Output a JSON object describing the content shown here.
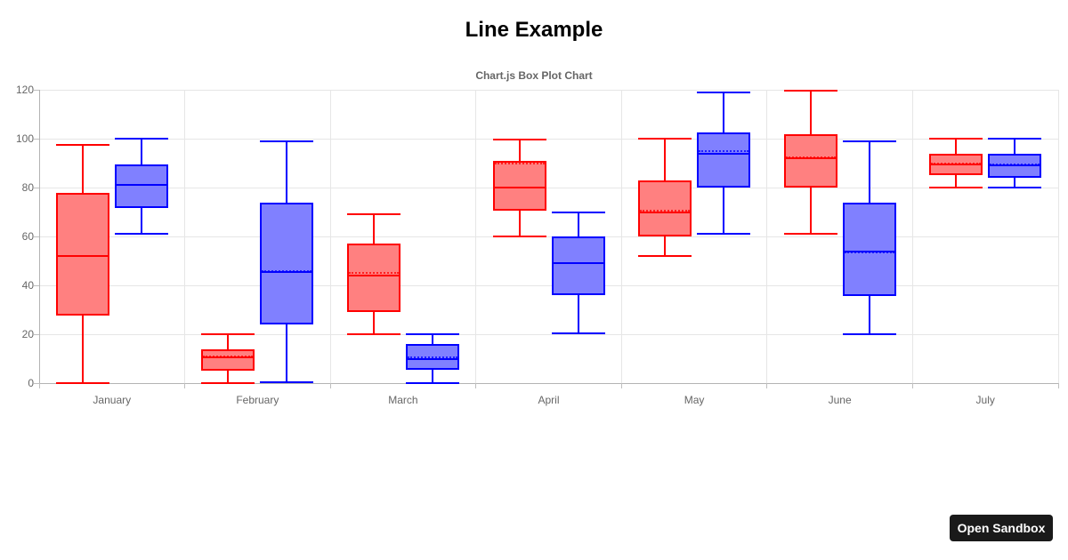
{
  "page": {
    "background": "#ffffff"
  },
  "header": {
    "title": "Line Example",
    "subtitle": "Chart.js Box Plot Chart",
    "title_color": "#000000",
    "subtitle_color": "#666666"
  },
  "sandbox_button": {
    "label": "Open Sandbox",
    "background": "#1a1a1a",
    "text_color": "#ffffff"
  },
  "chart_data": {
    "type": "boxplot",
    "title": "Chart.js Box Plot Chart",
    "categories": [
      "January",
      "February",
      "March",
      "April",
      "May",
      "June",
      "July"
    ],
    "y_axis": {
      "min": 0,
      "max": 120,
      "ticks": [
        0,
        20,
        40,
        60,
        80,
        100,
        120
      ]
    },
    "grid": {
      "gridline_color": "#e6e6e6",
      "axis_color": "#b3b3b3",
      "tick_mark_color": "#bfbfbf",
      "label_color": "#666666",
      "grid_on": true
    },
    "legend_position": "none",
    "series": [
      {
        "name": "red-series",
        "border_color": "#ff0000",
        "fill_color": "#ff8080",
        "boxes": [
          {
            "category": "January",
            "min": 0,
            "q1": 27.5,
            "median": 52,
            "mean": 52,
            "q3": 78,
            "max": 97.5
          },
          {
            "category": "February",
            "min": 0,
            "q1": 5,
            "median": 10.5,
            "mean": 11,
            "q3": 14,
            "max": 20
          },
          {
            "category": "March",
            "min": 20,
            "q1": 29,
            "median": 44,
            "mean": 45,
            "q3": 57,
            "max": 69
          },
          {
            "category": "April",
            "min": 60,
            "q1": 70.5,
            "median": 80,
            "mean": 90,
            "q3": 91,
            "max": 99.5
          },
          {
            "category": "May",
            "min": 52,
            "q1": 60,
            "median": 70,
            "mean": 70.5,
            "q3": 83,
            "max": 100
          },
          {
            "category": "June",
            "min": 61,
            "q1": 80,
            "median": 92,
            "mean": 92.5,
            "q3": 102,
            "max": 119.5
          },
          {
            "category": "July",
            "min": 80,
            "q1": 85,
            "median": 89.5,
            "mean": 90,
            "q3": 94,
            "max": 100
          }
        ]
      },
      {
        "name": "blue-series",
        "border_color": "#0000ff",
        "fill_color": "#8080ff",
        "boxes": [
          {
            "category": "January",
            "min": 61,
            "q1": 71.5,
            "median": 81,
            "mean": 81,
            "q3": 89.5,
            "max": 100
          },
          {
            "category": "February",
            "min": 0.5,
            "q1": 24,
            "median": 45.5,
            "mean": 46,
            "q3": 74,
            "max": 99
          },
          {
            "category": "March",
            "min": 0,
            "q1": 5.5,
            "median": 10,
            "mean": 10.5,
            "q3": 16,
            "max": 20
          },
          {
            "category": "April",
            "min": 20.5,
            "q1": 36,
            "median": 49,
            "mean": 49,
            "q3": 60,
            "max": 70
          },
          {
            "category": "May",
            "min": 61,
            "q1": 80,
            "median": 94,
            "mean": 95,
            "q3": 102.5,
            "max": 119
          },
          {
            "category": "June",
            "min": 20,
            "q1": 35.5,
            "median": 54,
            "mean": 53.5,
            "q3": 74,
            "max": 99
          },
          {
            "category": "July",
            "min": 80,
            "q1": 84,
            "median": 89,
            "mean": 89.5,
            "q3": 94,
            "max": 100
          }
        ]
      }
    ]
  }
}
